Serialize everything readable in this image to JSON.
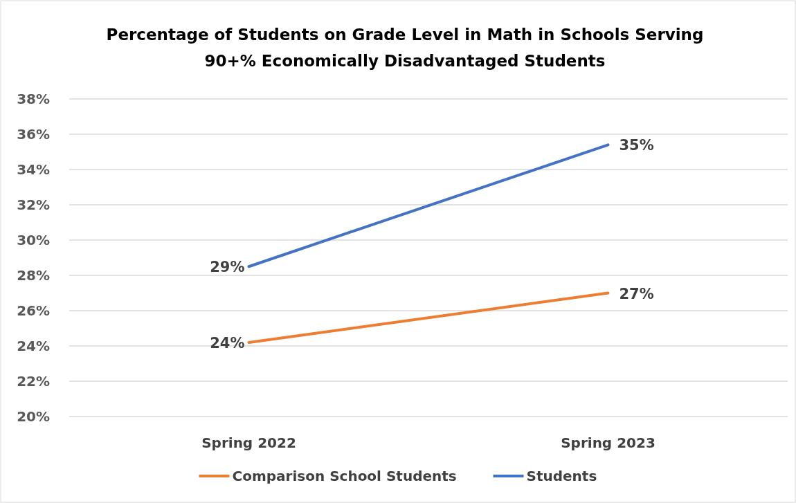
{
  "chart_data": {
    "type": "line",
    "title": "Percentage of Students on Grade Level in Math in Schools Serving\n90+% Economically Disadvantaged Students",
    "categories": [
      "Spring 2022",
      "Spring 2023"
    ],
    "series": [
      {
        "name": "Comparison School Students",
        "color": "#ed7d31",
        "values": [
          24.2,
          27.0
        ],
        "value_labels": [
          "24%",
          "27%"
        ]
      },
      {
        "name": "Students",
        "color": "#4472c4",
        "values": [
          28.5,
          35.4
        ],
        "value_labels": [
          "29%",
          "35%"
        ]
      }
    ],
    "ylim": [
      20,
      38
    ],
    "yticks": [
      {
        "value": 20,
        "label": "20%"
      },
      {
        "value": 22,
        "label": "22%"
      },
      {
        "value": 24,
        "label": "24%"
      },
      {
        "value": 26,
        "label": "26%"
      },
      {
        "value": 28,
        "label": "28%"
      },
      {
        "value": 30,
        "label": "30%"
      },
      {
        "value": 32,
        "label": "32%"
      },
      {
        "value": 34,
        "label": "34%"
      },
      {
        "value": 36,
        "label": "36%"
      },
      {
        "value": 38,
        "label": "38%"
      }
    ],
    "grid": "y",
    "legend": "bottom",
    "line_style": "solid"
  }
}
